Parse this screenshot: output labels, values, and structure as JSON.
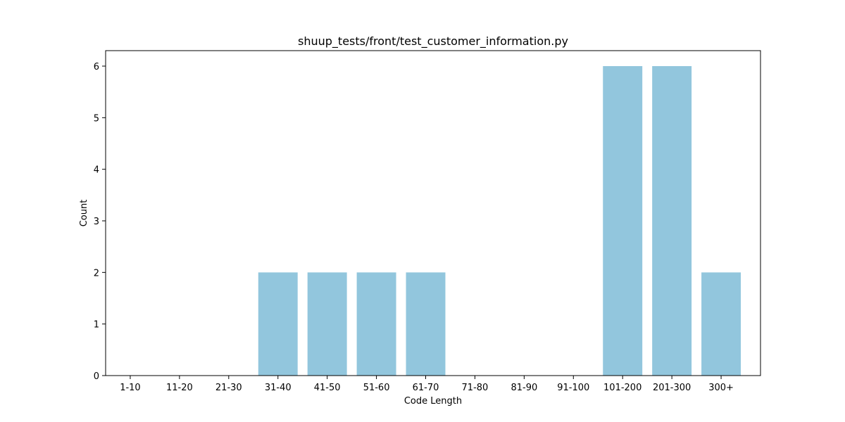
{
  "chart_data": {
    "type": "bar",
    "title": "shuup_tests/front/test_customer_information.py",
    "xlabel": "Code Length",
    "ylabel": "Count",
    "categories": [
      "1-10",
      "11-20",
      "21-30",
      "31-40",
      "41-50",
      "51-60",
      "61-70",
      "71-80",
      "81-90",
      "91-100",
      "101-200",
      "201-300",
      "300+"
    ],
    "values": [
      0,
      0,
      0,
      2,
      2,
      2,
      2,
      0,
      0,
      0,
      6,
      6,
      2
    ],
    "ylim": [
      0,
      6.3
    ],
    "yticks": [
      0,
      1,
      2,
      3,
      4,
      5,
      6
    ],
    "bar_color": "#92c6dd",
    "grid": false,
    "legend": "none"
  }
}
